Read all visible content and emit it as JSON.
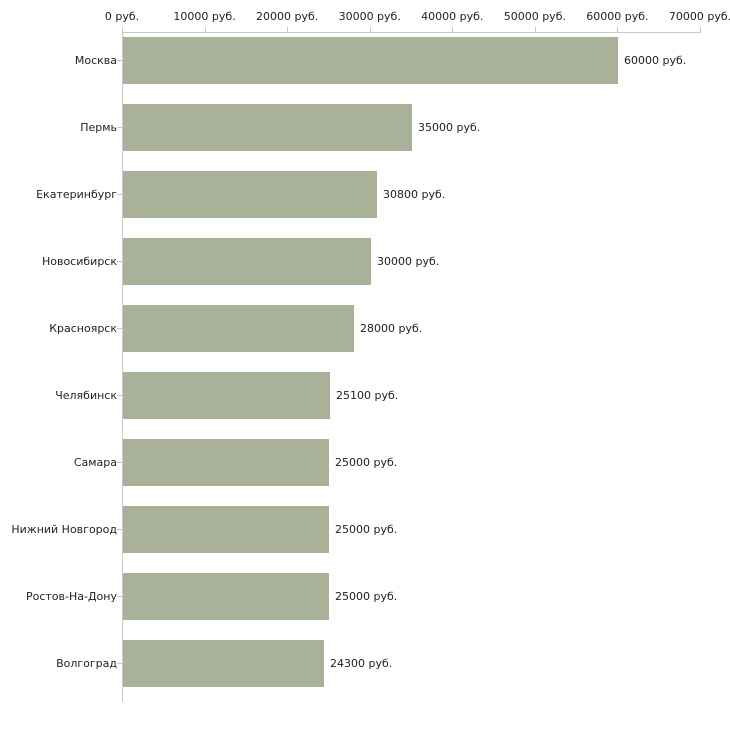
{
  "chart_data": {
    "type": "bar",
    "orientation": "horizontal",
    "title": "",
    "xlabel": "",
    "ylabel": "",
    "legend": "none",
    "grid": "off",
    "categories": [
      "Москва",
      "Пермь",
      "Екатеринбург",
      "Новосибирск",
      "Красноярск",
      "Челябинск",
      "Самара",
      "Нижний Новгород",
      "Ростов-На-Дону",
      "Волгоград"
    ],
    "values": [
      60000,
      35000,
      30800,
      30000,
      28000,
      25100,
      25000,
      25000,
      25000,
      24300
    ],
    "value_labels": [
      "60000 руб.",
      "35000 руб.",
      "30800 руб.",
      "30000 руб.",
      "28000 руб.",
      "25100 руб.",
      "25000 руб.",
      "25000 руб.",
      "25000 руб.",
      "24300 руб."
    ],
    "x_axis": {
      "position": "top",
      "min": 0,
      "max": 70000,
      "ticks": [
        0,
        10000,
        20000,
        30000,
        40000,
        50000,
        60000,
        70000
      ],
      "tick_labels": [
        "0 руб.",
        "10000 руб.",
        "20000 руб.",
        "30000 руб.",
        "40000 руб.",
        "50000 руб.",
        "60000 руб.",
        "70000 руб."
      ]
    },
    "colors": {
      "bar": "#aab199",
      "axis_line": "#c9c9c9",
      "tick": "#cfcaa4",
      "text": "#222222",
      "background": "#ffffff"
    }
  }
}
